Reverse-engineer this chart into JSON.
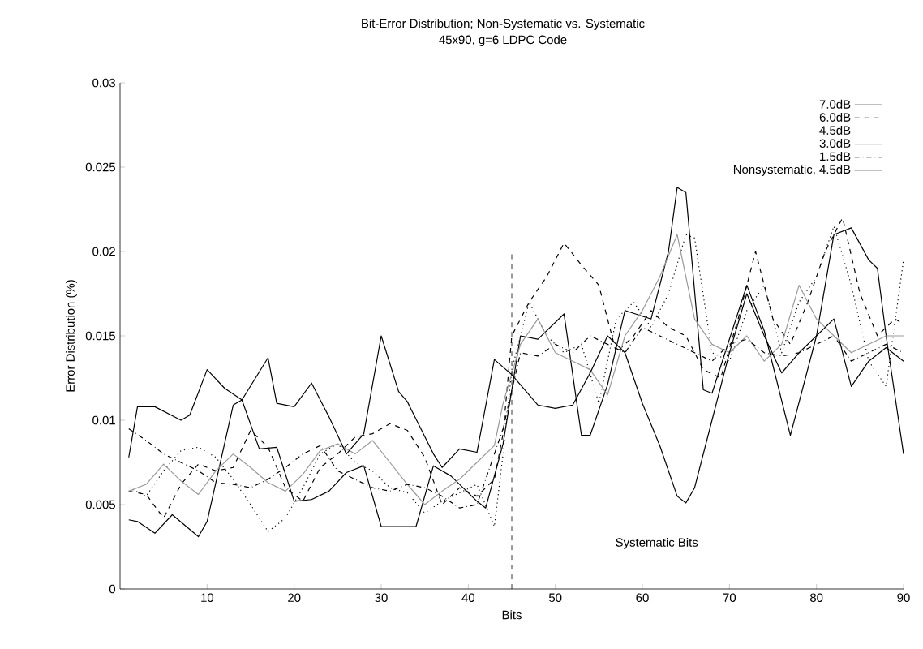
{
  "chart_data": {
    "type": "line",
    "title": "Bit-Error Distribution; Non-Systematic vs. Systematic",
    "subtitle": "45x90, g=6 LDPC Code",
    "xlabel": "Bits",
    "ylabel": "Error Distribution (%)",
    "xlim": [
      0,
      90
    ],
    "xticks": [
      10,
      20,
      30,
      40,
      50,
      60,
      70,
      80,
      90
    ],
    "ylim": [
      0,
      0.03
    ],
    "yticks": [
      0,
      0.005,
      0.01,
      0.015,
      0.02,
      0.025,
      0.03
    ],
    "legend": "top right",
    "grid": false,
    "marker": "none",
    "ref_lines": [
      {
        "axis": "x",
        "value": 45,
        "line_style": "dashed",
        "color": "#000000"
      }
    ],
    "annotations": [
      "Systematic Bits"
    ],
    "series": [
      {
        "name": "7.0dB",
        "color": "#000000",
        "line_style": "solid",
        "x": [
          1,
          2,
          4,
          6,
          9,
          10,
          13,
          14,
          16,
          18,
          20,
          22,
          24,
          26,
          28,
          30,
          34,
          36,
          38,
          41,
          42,
          44,
          46,
          48,
          51,
          53,
          54,
          56,
          58,
          61,
          63,
          64,
          65,
          67,
          68,
          72,
          74,
          77,
          80,
          82,
          84,
          86,
          87,
          88,
          90
        ],
        "values": [
          0.0041,
          0.004,
          0.0033,
          0.0044,
          0.0031,
          0.004,
          0.0109,
          0.0112,
          0.0083,
          0.0084,
          0.0052,
          0.0053,
          0.0058,
          0.0069,
          0.0073,
          0.0037,
          0.0037,
          0.0073,
          0.0067,
          0.0052,
          0.0048,
          0.0086,
          0.015,
          0.0148,
          0.0163,
          0.0091,
          0.0091,
          0.0121,
          0.0165,
          0.016,
          0.02,
          0.0238,
          0.0235,
          0.0118,
          0.0116,
          0.018,
          0.0153,
          0.0091,
          0.015,
          0.021,
          0.0214,
          0.0195,
          0.019,
          0.015,
          0.008
        ]
      },
      {
        "name": "6.0dB",
        "color": "#000000",
        "line_style": "dashed",
        "x": [
          1,
          3,
          5,
          7,
          9,
          11,
          13,
          15,
          17,
          19,
          21,
          23,
          25,
          27,
          29,
          31,
          33,
          35,
          37,
          39,
          41,
          43,
          44,
          45,
          47,
          49,
          51,
          53,
          55,
          57,
          59,
          61,
          63,
          65,
          67,
          69,
          71,
          73,
          75,
          77,
          79,
          81,
          83,
          85,
          87,
          89,
          90
        ],
        "values": [
          0.0058,
          0.0056,
          0.0042,
          0.0062,
          0.0074,
          0.007,
          0.0072,
          0.0094,
          0.0084,
          0.006,
          0.0052,
          0.0072,
          0.008,
          0.009,
          0.0092,
          0.0098,
          0.0094,
          0.0078,
          0.005,
          0.006,
          0.0055,
          0.0065,
          0.0092,
          0.015,
          0.017,
          0.0185,
          0.0205,
          0.0192,
          0.018,
          0.014,
          0.015,
          0.0165,
          0.0155,
          0.015,
          0.013,
          0.0125,
          0.016,
          0.02,
          0.016,
          0.0145,
          0.017,
          0.02,
          0.022,
          0.0175,
          0.015,
          0.016,
          0.0157
        ]
      },
      {
        "name": "4.5dB",
        "color": "#000000",
        "line_style": "dotted",
        "x": [
          1,
          3,
          5,
          7,
          9,
          11,
          13,
          15,
          17,
          19,
          21,
          23,
          25,
          27,
          29,
          31,
          33,
          35,
          37,
          39,
          41,
          43,
          44,
          45,
          47,
          49,
          51,
          53,
          55,
          57,
          59,
          61,
          63,
          65,
          66,
          68,
          70,
          72,
          74,
          76,
          78,
          80,
          82,
          84,
          86,
          88,
          90
        ],
        "values": [
          0.006,
          0.0055,
          0.007,
          0.0082,
          0.0084,
          0.0078,
          0.0065,
          0.005,
          0.0034,
          0.0042,
          0.006,
          0.008,
          0.0086,
          0.0075,
          0.007,
          0.006,
          0.0057,
          0.0045,
          0.0052,
          0.0057,
          0.0062,
          0.0037,
          0.008,
          0.013,
          0.017,
          0.015,
          0.014,
          0.0145,
          0.011,
          0.016,
          0.017,
          0.0155,
          0.0175,
          0.021,
          0.0208,
          0.014,
          0.0135,
          0.0165,
          0.018,
          0.014,
          0.017,
          0.0185,
          0.0215,
          0.018,
          0.0135,
          0.012,
          0.0195
        ]
      },
      {
        "name": "3.0dB",
        "color": "#999999",
        "line_style": "solid",
        "x": [
          1,
          3,
          5,
          7,
          9,
          11,
          13,
          15,
          17,
          19,
          21,
          23,
          25,
          27,
          29,
          31,
          33,
          35,
          37,
          39,
          41,
          43,
          44,
          46,
          48,
          50,
          52,
          54,
          56,
          58,
          60,
          62,
          64,
          66,
          68,
          70,
          72,
          74,
          76,
          78,
          80,
          82,
          84,
          86,
          88,
          90
        ],
        "values": [
          0.0058,
          0.0062,
          0.0074,
          0.0064,
          0.0056,
          0.007,
          0.008,
          0.0072,
          0.0063,
          0.0058,
          0.0068,
          0.0082,
          0.0086,
          0.008,
          0.0088,
          0.0075,
          0.0062,
          0.005,
          0.0058,
          0.0065,
          0.0075,
          0.0085,
          0.011,
          0.0145,
          0.016,
          0.014,
          0.0135,
          0.013,
          0.0115,
          0.015,
          0.0165,
          0.0185,
          0.021,
          0.016,
          0.0145,
          0.014,
          0.015,
          0.0135,
          0.0145,
          0.018,
          0.016,
          0.015,
          0.014,
          0.0145,
          0.015,
          0.015
        ]
      },
      {
        "name": "1.5dB",
        "color": "#000000",
        "line_style": "dashdot",
        "x": [
          1,
          3,
          5,
          7,
          9,
          11,
          13,
          15,
          17,
          19,
          21,
          23,
          25,
          27,
          29,
          31,
          33,
          35,
          37,
          39,
          41,
          43,
          44,
          46,
          48,
          50,
          52,
          54,
          56,
          58,
          60,
          62,
          64,
          66,
          68,
          70,
          72,
          74,
          76,
          78,
          80,
          82,
          84,
          86,
          88,
          90
        ],
        "values": [
          0.0095,
          0.0088,
          0.008,
          0.0075,
          0.007,
          0.0063,
          0.0062,
          0.006,
          0.0065,
          0.0072,
          0.008,
          0.0085,
          0.007,
          0.0065,
          0.006,
          0.0058,
          0.0062,
          0.006,
          0.0055,
          0.0048,
          0.005,
          0.008,
          0.0095,
          0.014,
          0.0138,
          0.0145,
          0.014,
          0.015,
          0.0145,
          0.014,
          0.0155,
          0.015,
          0.0145,
          0.014,
          0.0135,
          0.0145,
          0.0148,
          0.014,
          0.0138,
          0.014,
          0.0145,
          0.015,
          0.0135,
          0.014,
          0.0145,
          0.014
        ]
      },
      {
        "name": "Nonsystematic, 4.5dB",
        "color": "#000000",
        "line_style": "solid",
        "x": [
          1,
          2,
          4,
          7,
          8,
          10,
          12,
          14,
          17,
          18,
          20,
          22,
          24,
          26,
          28,
          30,
          32,
          33,
          36,
          37,
          39,
          41,
          43,
          45,
          48,
          50,
          52,
          54,
          56,
          58,
          60,
          62,
          64,
          65,
          66,
          68,
          70,
          72,
          74,
          76,
          78,
          80,
          82,
          84,
          86,
          88,
          90
        ],
        "values": [
          0.0078,
          0.0108,
          0.0108,
          0.01,
          0.0103,
          0.013,
          0.0119,
          0.0112,
          0.0137,
          0.011,
          0.0108,
          0.0122,
          0.0102,
          0.008,
          0.0092,
          0.015,
          0.0117,
          0.0111,
          0.008,
          0.0072,
          0.0083,
          0.0081,
          0.0136,
          0.0127,
          0.0109,
          0.0107,
          0.0109,
          0.0128,
          0.015,
          0.014,
          0.011,
          0.0085,
          0.0055,
          0.0051,
          0.006,
          0.01,
          0.014,
          0.0175,
          0.015,
          0.0128,
          0.014,
          0.015,
          0.016,
          0.012,
          0.0135,
          0.0143,
          0.0135
        ]
      }
    ]
  }
}
